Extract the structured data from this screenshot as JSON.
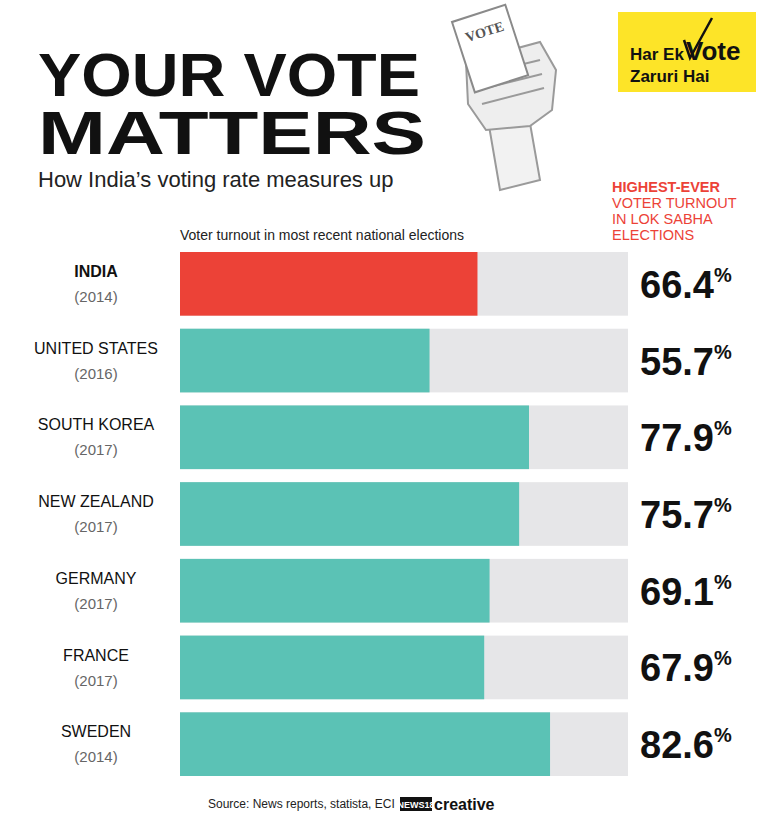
{
  "chart_data": {
    "type": "bar",
    "orientation": "horizontal",
    "title": [
      "YOUR VOTE",
      "MATTERS"
    ],
    "subtitle": "How India’s voting rate measures up",
    "x_label": "Voter turnout in most recent national elections",
    "annotation": [
      "HIGHEST-EVER",
      "VOTER TURNOUT",
      "IN LOK SABHA",
      "ELECTIONS"
    ],
    "logo": [
      "Har Ek",
      "Vote",
      "Zaruri Hai"
    ],
    "icon_text": "VOTE",
    "source": "Source: News reports, statista, ECI",
    "credit": [
      "NEWS18",
      "creative"
    ],
    "categories": [
      "INDIA",
      "UNITED STATES",
      "SOUTH KOREA",
      "NEW ZEALAND",
      "GERMANY",
      "FRANCE",
      "SWEDEN"
    ],
    "years": [
      "(2014)",
      "(2016)",
      "(2017)",
      "(2017)",
      "(2017)",
      "(2017)",
      "(2014)"
    ],
    "values": [
      66.4,
      55.7,
      77.9,
      75.7,
      69.1,
      67.9,
      82.6
    ],
    "value_labels": [
      "66.4%",
      "55.7%",
      "77.9%",
      "75.7%",
      "69.1%",
      "67.9%",
      "82.6%"
    ],
    "colors": [
      "#ec4237",
      "#5bc2b5",
      "#5bc2b5",
      "#5bc2b5",
      "#5bc2b5",
      "#5bc2b5",
      "#5bc2b5"
    ],
    "xlim": [
      0,
      100
    ],
    "xticks": [],
    "data_labels": true,
    "tick_labels": "y",
    "grid": false
  }
}
